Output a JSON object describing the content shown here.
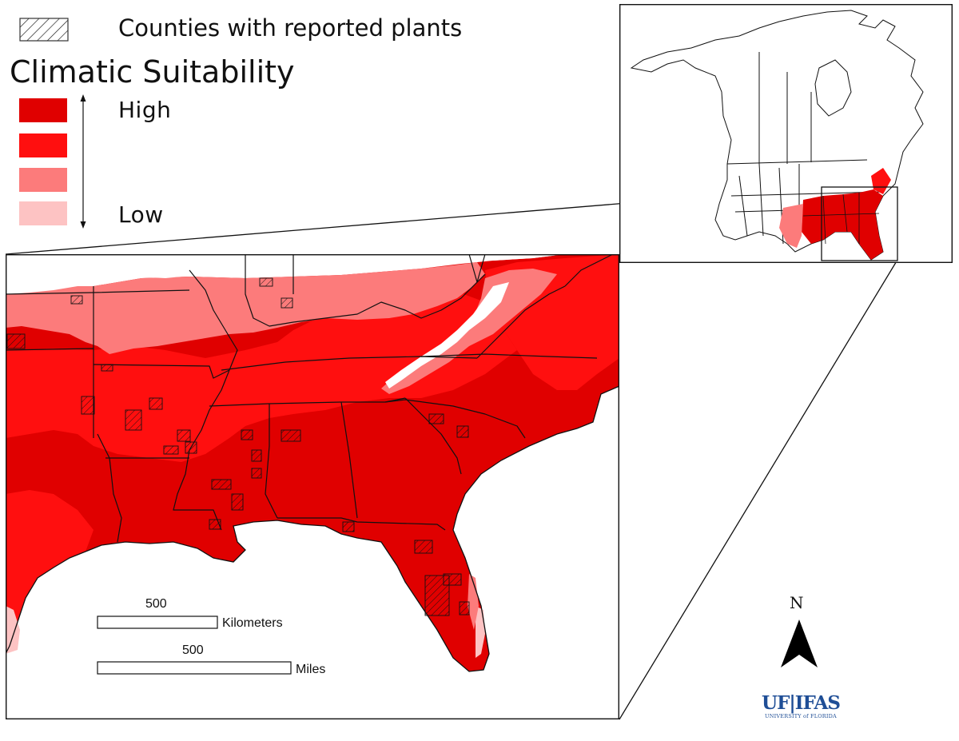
{
  "legend": {
    "hatch_label": "Counties with reported plants",
    "title": "Climatic Suitability",
    "high_label": "High",
    "low_label": "Low",
    "classes": [
      {
        "level": "high",
        "color": "#e00000"
      },
      {
        "level": "medium-high",
        "color": "#ff0f0f"
      },
      {
        "level": "medium-low",
        "color": "#fc7b7b"
      },
      {
        "level": "low",
        "color": "#fdc3c3"
      }
    ]
  },
  "scale_bars": {
    "km_value": "500",
    "km_unit": "Kilometers",
    "mi_value": "500",
    "mi_unit": "Miles"
  },
  "north_arrow": {
    "label": "N"
  },
  "logo": {
    "main": "UF|IFAS",
    "sub": "UNIVERSITY of FLORIDA"
  },
  "colors": {
    "high": "#e00000",
    "medium_high": "#ff0f0f",
    "medium_low": "#fc7b7b",
    "low": "#fdc3c3",
    "water": "#ffffff",
    "border": "#111111",
    "logo_blue": "#1f4e96"
  }
}
